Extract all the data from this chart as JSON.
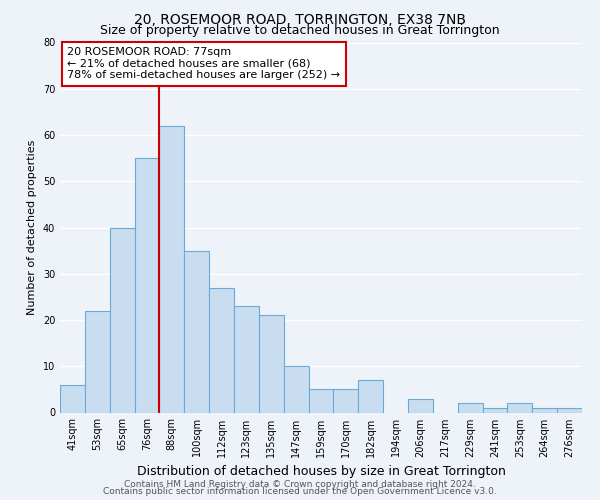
{
  "title": "20, ROSEMOOR ROAD, TORRINGTON, EX38 7NB",
  "subtitle": "Size of property relative to detached houses in Great Torrington",
  "xlabel": "Distribution of detached houses by size in Great Torrington",
  "ylabel": "Number of detached properties",
  "bar_labels": [
    "41sqm",
    "53sqm",
    "65sqm",
    "76sqm",
    "88sqm",
    "100sqm",
    "112sqm",
    "123sqm",
    "135sqm",
    "147sqm",
    "159sqm",
    "170sqm",
    "182sqm",
    "194sqm",
    "206sqm",
    "217sqm",
    "229sqm",
    "241sqm",
    "253sqm",
    "264sqm",
    "276sqm"
  ],
  "bar_values": [
    6,
    22,
    40,
    55,
    62,
    35,
    27,
    23,
    21,
    10,
    5,
    5,
    7,
    0,
    3,
    0,
    2,
    1,
    2,
    1,
    1
  ],
  "bar_color": "#c9ddf0",
  "bar_edge_color": "#6aaad4",
  "vline_index": 4,
  "vline_color": "#cc0000",
  "annotation_text": "20 ROSEMOOR ROAD: 77sqm\n← 21% of detached houses are smaller (68)\n78% of semi-detached houses are larger (252) →",
  "annotation_box_facecolor": "#ffffff",
  "annotation_box_edgecolor": "#cc0000",
  "ylim": [
    0,
    80
  ],
  "yticks": [
    0,
    10,
    20,
    30,
    40,
    50,
    60,
    70,
    80
  ],
  "footer_line1": "Contains HM Land Registry data © Crown copyright and database right 2024.",
  "footer_line2": "Contains public sector information licensed under the Open Government Licence v3.0.",
  "background_color": "#eef2f9",
  "grid_color": "#ffffff",
  "title_fontsize": 10,
  "subtitle_fontsize": 9,
  "ylabel_fontsize": 8,
  "xlabel_fontsize": 9,
  "tick_fontsize": 7,
  "annotation_fontsize": 8,
  "footer_fontsize": 6.5
}
